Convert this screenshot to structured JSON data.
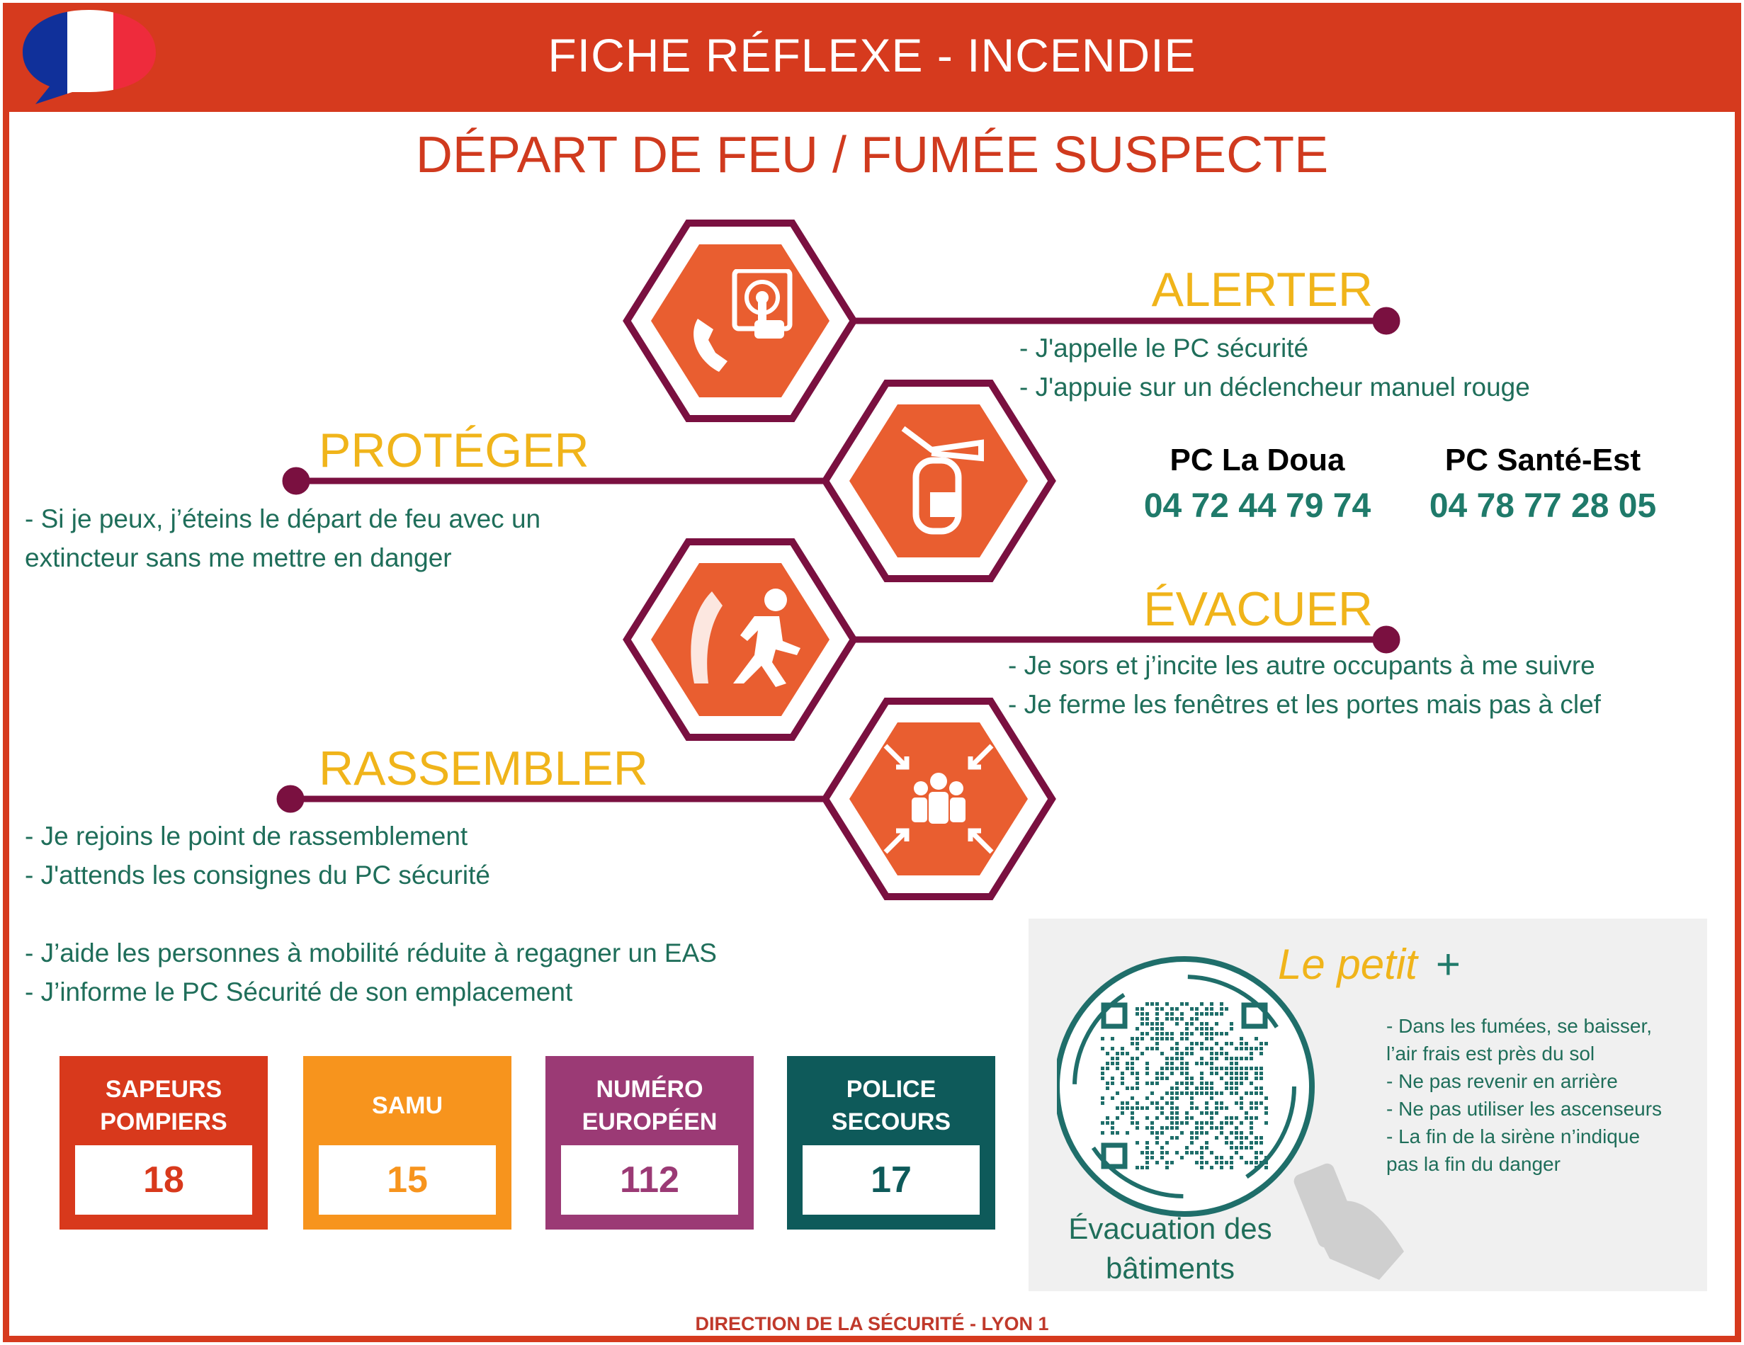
{
  "header": {
    "title": "FICHE RÉFLEXE - INCENDIE",
    "flag_icon": "french-flag-speech-bubble-icon",
    "color": "#d63a1e"
  },
  "subtitle": "DÉPART DE FEU  / FUMÉE SUSPECTE",
  "steps": [
    {
      "label": "ALERTER",
      "icon": "alarm-phone-icon",
      "lines": [
        "- J'appelle le PC sécurité",
        "- J'appuie sur un déclencheur manuel rouge"
      ]
    },
    {
      "label": "PROTÉGER",
      "icon": "fire-extinguisher-icon",
      "lines": [
        "- Si je peux, j’éteins le départ de feu avec un",
        "extincteur sans me mettre en danger"
      ]
    },
    {
      "label": "ÉVACUER",
      "icon": "emergency-exit-icon",
      "lines": [
        "- Je sors et j’incite les autre occupants à me suivre",
        "- Je ferme les fenêtres et les portes mais pas à clef"
      ]
    },
    {
      "label": "RASSEMBLER",
      "icon": "assembly-point-icon",
      "lines": [
        "- Je rejoins le point de rassemblement",
        "- J'attends les consignes du PC sécurité",
        "- J’aide les personnes à mobilité réduite à regagner un EAS",
        "- J’informe le PC Sécurité de son emplacement"
      ]
    }
  ],
  "contacts": [
    {
      "name": "PC La Doua",
      "phone": "04 72 44 79 74"
    },
    {
      "name": "PC Santé-Est",
      "phone": "04 78 77 28 05"
    }
  ],
  "emergency": [
    {
      "label": "SAPEURS POMPIERS",
      "number": "18",
      "color": "#d8391c"
    },
    {
      "label": "SAMU",
      "number": "15",
      "color": "#f7941d"
    },
    {
      "label": "NUMÉRO EUROPÉEN",
      "number": "112",
      "color": "#9b3a75"
    },
    {
      "label": "POLICE SECOURS",
      "number": "17",
      "color": "#0e5a5a"
    }
  ],
  "panel": {
    "title": "Le petit",
    "plus": "+",
    "tips": [
      "- Dans les fumées, se baisser,",
      "l’air frais est près du sol",
      "- Ne pas revenir en arrière",
      "- Ne pas utiliser les ascenseurs",
      "- La fin de la sirène n’indique",
      "pas la fin du danger"
    ],
    "qr_caption_1": "Évacuation des",
    "qr_caption_2": "bâtiments",
    "qr_icon": "qr-code-icon",
    "phone_icon": "hand-phone-scan-icon"
  },
  "footer": "DIRECTION DE LA SÉCURITÉ - LYON 1",
  "colors": {
    "orange": "#e95e30",
    "hex_border": "#7a1040",
    "yellow": "#f0b41a",
    "teal": "#1f6e5a"
  }
}
